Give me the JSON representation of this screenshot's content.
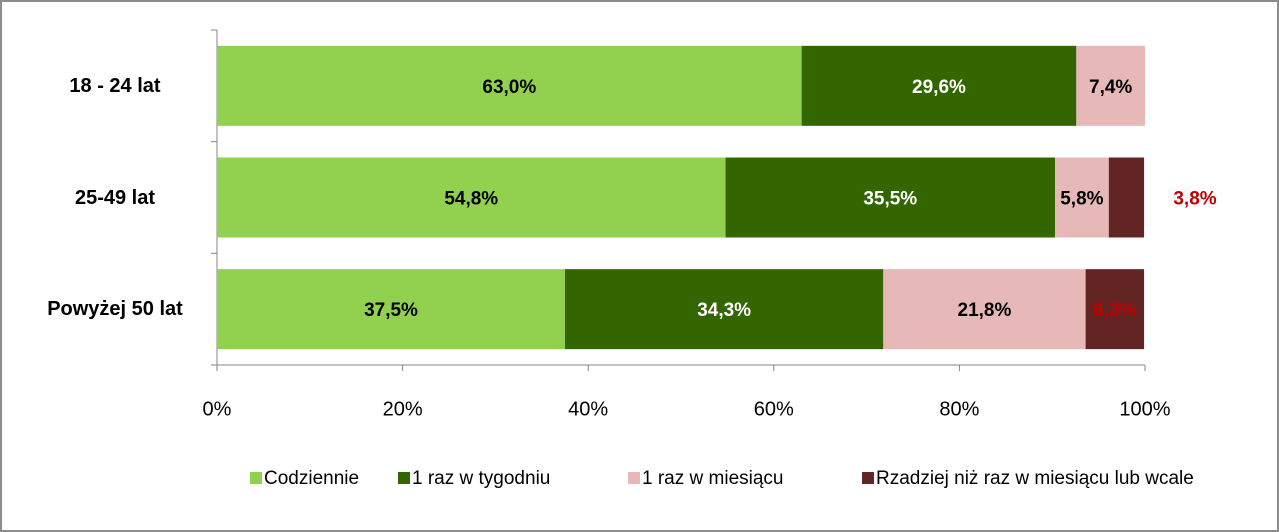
{
  "chart_data": {
    "type": "stacked-barh",
    "categories": [
      "18 - 24 lat",
      "25-49 lat",
      "Powyżej 50 lat"
    ],
    "series": [
      {
        "name": "Codziennie",
        "color": "#92d050",
        "label_color": "#000000",
        "values": [
          63.0,
          54.8,
          37.5
        ],
        "value_labels": [
          "63,0%",
          "54,8%",
          "37,5%"
        ]
      },
      {
        "name": "1 raz w tygodniu",
        "color": "#336600",
        "label_color": "#ffffff",
        "values": [
          29.6,
          35.5,
          34.3
        ],
        "value_labels": [
          "29,6%",
          "35,5%",
          "34,3%"
        ]
      },
      {
        "name": "1 raz w miesiącu",
        "color": "#e6b8b7",
        "label_color": "#000000",
        "values": [
          7.4,
          5.8,
          21.8
        ],
        "value_labels": [
          "7,4%",
          "5,8%",
          "21,8%"
        ]
      },
      {
        "name": "Rzadziej niż raz w miesiącu lub wcale",
        "color": "#632523",
        "label_color": "#c00000",
        "values": [
          null,
          3.8,
          6.3
        ],
        "value_labels": [
          null,
          "3,8%",
          "6,3%"
        ]
      }
    ],
    "xlim": [
      0,
      100
    ],
    "xticks": [
      {
        "value": 0,
        "label": "0%"
      },
      {
        "value": 20,
        "label": "20%"
      },
      {
        "value": 40,
        "label": "40%"
      },
      {
        "value": 60,
        "label": "60%"
      },
      {
        "value": 80,
        "label": "80%"
      },
      {
        "value": 100,
        "label": "100%"
      }
    ],
    "legend": "bottom"
  }
}
